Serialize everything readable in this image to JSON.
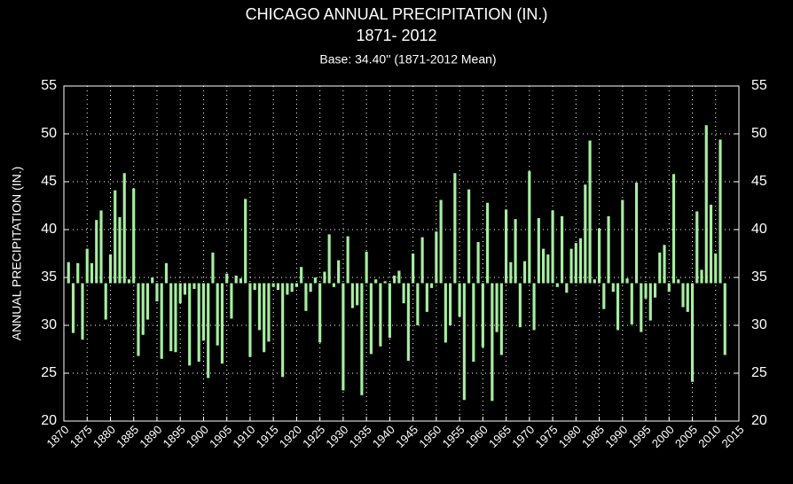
{
  "chart_data": {
    "type": "bar",
    "title": [
      "CHICAGO ANNUAL PRECIPITATION (IN.)",
      "1871- 2012"
    ],
    "subtitle": "Base: 34.40''  (1871-2012 Mean)",
    "ylabel": "ANNUAL PRECIPITATION (IN.)",
    "base": 34.4,
    "color": "#a6eea0",
    "grid": true,
    "x": [
      1871,
      1872,
      1873,
      1874,
      1875,
      1876,
      1877,
      1878,
      1879,
      1880,
      1881,
      1882,
      1883,
      1884,
      1885,
      1886,
      1887,
      1888,
      1889,
      1890,
      1891,
      1892,
      1893,
      1894,
      1895,
      1896,
      1897,
      1898,
      1899,
      1900,
      1901,
      1902,
      1903,
      1904,
      1905,
      1906,
      1907,
      1908,
      1909,
      1910,
      1911,
      1912,
      1913,
      1914,
      1915,
      1916,
      1917,
      1918,
      1919,
      1920,
      1921,
      1922,
      1923,
      1924,
      1925,
      1926,
      1927,
      1928,
      1929,
      1930,
      1931,
      1932,
      1933,
      1934,
      1935,
      1936,
      1937,
      1938,
      1939,
      1940,
      1941,
      1942,
      1943,
      1944,
      1945,
      1946,
      1947,
      1948,
      1949,
      1950,
      1951,
      1952,
      1953,
      1954,
      1955,
      1956,
      1957,
      1958,
      1959,
      1960,
      1961,
      1962,
      1963,
      1964,
      1965,
      1966,
      1967,
      1968,
      1969,
      1970,
      1971,
      1972,
      1973,
      1974,
      1975,
      1976,
      1977,
      1978,
      1979,
      1980,
      1981,
      1982,
      1983,
      1984,
      1985,
      1986,
      1987,
      1988,
      1989,
      1990,
      1991,
      1992,
      1993,
      1994,
      1995,
      1996,
      1997,
      1998,
      1999,
      2000,
      2001,
      2002,
      2003,
      2004,
      2005,
      2006,
      2007,
      2008,
      2009,
      2010,
      2011,
      2012
    ],
    "values": [
      36.6,
      29.2,
      36.5,
      28.5,
      38.0,
      36.5,
      41.0,
      42.0,
      30.6,
      37.4,
      44.1,
      41.3,
      45.9,
      34.8,
      44.3,
      26.8,
      29.0,
      30.6,
      35.0,
      32.5,
      26.5,
      36.5,
      27.3,
      27.2,
      32.3,
      33.2,
      25.8,
      33.8,
      26.2,
      28.4,
      24.5,
      37.6,
      27.9,
      26.0,
      35.4,
      30.7,
      35.2,
      34.9,
      43.2,
      26.7,
      33.7,
      29.5,
      27.2,
      28.3,
      34.0,
      33.7,
      24.6,
      33.2,
      33.5,
      34.0,
      36.1,
      31.5,
      33.5,
      35.0,
      28.2,
      35.6,
      39.5,
      34.0,
      36.8,
      23.2,
      39.3,
      31.8,
      32.1,
      22.7,
      37.7,
      27.0,
      34.8,
      27.8,
      34.6,
      28.7,
      35.2,
      35.7,
      32.3,
      26.3,
      37.5,
      30.0,
      39.2,
      31.4,
      33.9,
      39.8,
      43.1,
      28.2,
      30.0,
      45.9,
      30.9,
      22.2,
      44.2,
      26.2,
      38.7,
      27.7,
      42.8,
      22.1,
      29.3,
      26.9,
      42.1,
      36.6,
      41.1,
      29.8,
      36.7,
      46.1,
      29.5,
      41.2,
      38.0,
      37.4,
      42.0,
      34.0,
      41.4,
      33.4,
      38.0,
      38.6,
      39.1,
      44.7,
      49.3,
      34.8,
      40.1,
      31.7,
      41.4,
      33.5,
      29.5,
      43.1,
      34.9,
      30.1,
      44.9,
      29.3,
      32.8,
      30.5,
      32.9,
      37.6,
      38.4,
      33.5,
      45.8,
      34.8,
      31.9,
      31.4,
      24.1,
      41.9,
      35.8,
      50.9,
      42.6,
      37.5,
      49.4,
      26.9
    ],
    "xlim": [
      1870,
      2015
    ],
    "xticks": [
      1870,
      1875,
      1880,
      1885,
      1890,
      1895,
      1900,
      1905,
      1910,
      1915,
      1920,
      1925,
      1930,
      1935,
      1940,
      1945,
      1950,
      1955,
      1960,
      1965,
      1970,
      1975,
      1980,
      1985,
      1990,
      1995,
      2000,
      2005,
      2010,
      2015
    ],
    "ylim": [
      20,
      55
    ],
    "yticks": [
      20,
      25,
      30,
      35,
      40,
      45,
      50,
      55
    ],
    "y2lim": [
      20,
      55
    ],
    "y2ticks": [
      20,
      25,
      30,
      35,
      40,
      45,
      50,
      55
    ]
  }
}
